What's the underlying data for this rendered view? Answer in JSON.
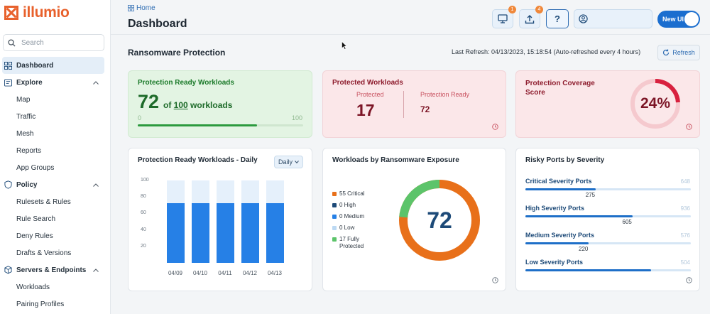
{
  "app": {
    "logo_text": "illumio"
  },
  "search": {
    "placeholder": "Search"
  },
  "nav": {
    "dashboard": "Dashboard",
    "explore": "Explore",
    "explore_items": [
      "Map",
      "Traffic",
      "Mesh",
      "Reports",
      "App Groups"
    ],
    "policy": "Policy",
    "policy_items": [
      "Rulesets & Rules",
      "Rule Search",
      "Deny Rules",
      "Drafts & Versions"
    ],
    "servers": "Servers & Endpoints",
    "servers_items": [
      "Workloads",
      "Pairing Profiles"
    ]
  },
  "header": {
    "breadcrumb": "Home",
    "title": "Dashboard",
    "badge_1": "1",
    "badge_2": "4",
    "help": "?",
    "new_ui": "New UI"
  },
  "section": {
    "title": "Ransomware Protection",
    "last_refresh": "Last Refresh: 04/13/2023, 15:18:54 (Auto-refreshed every 4 hours)",
    "refresh_label": "Refresh"
  },
  "card_ready": {
    "title": "Protection Ready Workloads",
    "value": "72",
    "of_prefix": "of",
    "total": "100",
    "of_suffix": "workloads",
    "min": "0",
    "max": "100",
    "progress_fraction": 0.72
  },
  "card_protected": {
    "title": "Protected Workloads",
    "protected_label": "Protected",
    "protected_value": "17",
    "ready_label": "Protection Ready",
    "ready_value": "72"
  },
  "card_coverage": {
    "title_line1": "Protection Coverage",
    "title_line2": "Score",
    "value": "24%",
    "fraction": 0.24
  },
  "card_daily": {
    "title": "Protection Ready Workloads - Daily",
    "dropdown": "Daily"
  },
  "card_exposure": {
    "title": "Workloads by Ransomware Exposure",
    "total": "72",
    "legend": [
      {
        "label": "55 Critical",
        "color": "#e8701a"
      },
      {
        "label": "0 High",
        "color": "#1d4a78"
      },
      {
        "label": "0 Medium",
        "color": "#2680e6"
      },
      {
        "label": "0 Low",
        "color": "#bcd9f3"
      },
      {
        "label_line1": "17 Fully",
        "label_line2": "Protected",
        "color": "#5cc46a"
      }
    ]
  },
  "card_ports": {
    "title": "Risky Ports by Severity",
    "rows": [
      {
        "label": "Critical Severity Ports",
        "max": "648",
        "value": "275",
        "fraction": 0.424
      },
      {
        "label": "High Severity Ports",
        "max": "936",
        "value": "605",
        "fraction": 0.646
      },
      {
        "label": "Medium Severity Ports",
        "max": "576",
        "value": "220",
        "fraction": 0.382
      },
      {
        "label": "Low Severity Ports",
        "max": "504",
        "value": "",
        "fraction": 0.76
      }
    ]
  },
  "chart_data": {
    "type": "bar",
    "title": "Protection Ready Workloads - Daily",
    "categories": [
      "04/09",
      "04/10",
      "04/11",
      "04/12",
      "04/13"
    ],
    "series": [
      {
        "values": [
          72,
          72,
          72,
          72,
          72
        ]
      },
      {
        "values": [
          100,
          100,
          100,
          100,
          100
        ]
      }
    ],
    "yticks": [
      "100",
      "80",
      "60",
      "40",
      "20"
    ],
    "ylim": [
      0,
      100
    ],
    "colors": [
      "#2680e6",
      "#e5f0fb"
    ]
  }
}
